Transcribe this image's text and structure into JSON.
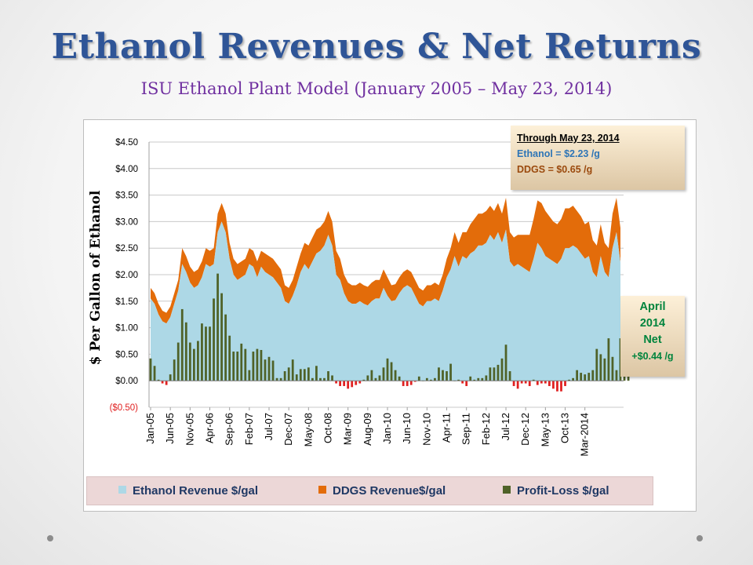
{
  "slide": {
    "title": "Ethanol Revenues & Net Returns",
    "subtitle": "ISU Ethanol Plant Model (January 2005 – May 23, 2014)"
  },
  "info_box": {
    "title": "Through May 23, 2014",
    "ethanol_line": "Ethanol  = $2.23 /g",
    "ddgs_line": "DDGS     = $0.65 /g"
  },
  "net_box": {
    "line1": "April",
    "line2": "2014",
    "line3": "Net",
    "line4": "+$0.44 /g"
  },
  "legend": {
    "ethanol": "Ethanol Revenue $/gal",
    "ddgs": "DDGS Revenue$/gal",
    "profit": "Profit-Loss $/gal"
  },
  "colors": {
    "ethanol": "#add8e6",
    "ddgs": "#e36c0a",
    "profit": "#4f6228",
    "loss": "#e02020",
    "title": "#2f5597",
    "subtitle": "#7030a0"
  },
  "chart_data": {
    "type": "area",
    "ylabel": "$ Per Gallon of Ethanol",
    "xlabel": "",
    "ylim": [
      -0.5,
      4.5
    ],
    "ytick_labels": [
      "($0.50)",
      "$0.00",
      "$0.50",
      "$1.00",
      "$1.50",
      "$2.00",
      "$2.50",
      "$3.00",
      "$3.50",
      "$4.00",
      "$4.50"
    ],
    "xtick_labels": [
      "Jan-05",
      "Jun-05",
      "Nov-05",
      "Apr-06",
      "Sep-06",
      "Feb-07",
      "Jul-07",
      "Dec-07",
      "May-08",
      "Oct-08",
      "Mar-09",
      "Aug-09",
      "Jan-10",
      "Jun-10",
      "Nov-10",
      "Apr-11",
      "Sep-11",
      "Feb-12",
      "Jul-12",
      "Dec-12",
      "May-13",
      "Oct-13",
      "Mar-2014"
    ],
    "grid": "horizontal",
    "legend_position": "bottom",
    "first_month": "2005-01",
    "series": [
      {
        "name": "Ethanol Revenue $/gal",
        "kind": "stacked-area",
        "values": [
          1.55,
          1.45,
          1.25,
          1.12,
          1.08,
          1.2,
          1.45,
          1.7,
          2.2,
          2.05,
          1.85,
          1.75,
          1.8,
          1.95,
          2.2,
          2.15,
          2.2,
          2.8,
          3.0,
          2.8,
          2.3,
          2.0,
          1.9,
          1.95,
          2.0,
          2.2,
          2.15,
          1.95,
          2.15,
          2.05,
          2.0,
          1.95,
          1.85,
          1.75,
          1.5,
          1.45,
          1.6,
          1.8,
          2.05,
          2.2,
          2.1,
          2.25,
          2.4,
          2.45,
          2.55,
          2.75,
          2.55,
          2.0,
          1.9,
          1.65,
          1.5,
          1.45,
          1.45,
          1.5,
          1.45,
          1.42,
          1.5,
          1.55,
          1.55,
          1.75,
          1.6,
          1.5,
          1.52,
          1.65,
          1.75,
          1.8,
          1.75,
          1.6,
          1.45,
          1.4,
          1.5,
          1.5,
          1.55,
          1.5,
          1.7,
          1.95,
          2.1,
          2.35,
          2.15,
          2.35,
          2.3,
          2.4,
          2.45,
          2.55,
          2.55,
          2.6,
          2.75,
          2.65,
          2.8,
          2.6,
          2.85,
          2.25,
          2.15,
          2.2,
          2.15,
          2.1,
          2.05,
          2.3,
          2.6,
          2.5,
          2.35,
          2.3,
          2.25,
          2.2,
          2.3,
          2.5,
          2.5,
          2.55,
          2.5,
          2.4,
          2.3,
          2.35,
          2.05,
          1.95,
          2.35,
          2.05,
          1.95,
          2.5,
          2.8,
          2.23
        ]
      },
      {
        "name": "DDGS Revenue$/gal",
        "kind": "stacked-area",
        "values": [
          0.2,
          0.2,
          0.2,
          0.2,
          0.2,
          0.2,
          0.2,
          0.2,
          0.3,
          0.3,
          0.3,
          0.3,
          0.3,
          0.3,
          0.3,
          0.3,
          0.3,
          0.35,
          0.35,
          0.35,
          0.3,
          0.3,
          0.3,
          0.3,
          0.3,
          0.3,
          0.3,
          0.3,
          0.3,
          0.35,
          0.35,
          0.35,
          0.35,
          0.35,
          0.3,
          0.3,
          0.3,
          0.35,
          0.35,
          0.4,
          0.45,
          0.45,
          0.45,
          0.45,
          0.45,
          0.45,
          0.45,
          0.45,
          0.4,
          0.35,
          0.35,
          0.35,
          0.35,
          0.35,
          0.35,
          0.35,
          0.35,
          0.35,
          0.35,
          0.35,
          0.35,
          0.3,
          0.3,
          0.3,
          0.3,
          0.3,
          0.3,
          0.3,
          0.3,
          0.3,
          0.3,
          0.3,
          0.3,
          0.3,
          0.3,
          0.35,
          0.4,
          0.45,
          0.45,
          0.45,
          0.5,
          0.55,
          0.6,
          0.6,
          0.6,
          0.6,
          0.55,
          0.55,
          0.55,
          0.55,
          0.6,
          0.55,
          0.55,
          0.55,
          0.6,
          0.65,
          0.7,
          0.75,
          0.8,
          0.85,
          0.85,
          0.8,
          0.75,
          0.75,
          0.75,
          0.75,
          0.75,
          0.75,
          0.7,
          0.7,
          0.65,
          0.65,
          0.6,
          0.6,
          0.6,
          0.55,
          0.55,
          0.65,
          0.65,
          0.65
        ]
      },
      {
        "name": "Profit-Loss $/gal",
        "kind": "bar",
        "values": [
          0.42,
          0.28,
          0.02,
          -0.05,
          -0.08,
          0.12,
          0.4,
          0.72,
          1.35,
          1.1,
          0.72,
          0.6,
          0.75,
          1.08,
          1.02,
          1.02,
          1.55,
          2.02,
          1.65,
          1.25,
          0.85,
          0.55,
          0.55,
          0.7,
          0.6,
          0.2,
          0.55,
          0.6,
          0.58,
          0.4,
          0.45,
          0.38,
          0.05,
          0.05,
          0.18,
          0.25,
          0.4,
          0.12,
          0.22,
          0.22,
          0.25,
          0.05,
          0.28,
          0.05,
          0.05,
          0.18,
          0.1,
          -0.05,
          -0.1,
          -0.1,
          -0.15,
          -0.12,
          -0.08,
          -0.05,
          0.02,
          0.1,
          0.2,
          0.05,
          0.1,
          0.25,
          0.42,
          0.35,
          0.2,
          0.08,
          -0.1,
          -0.1,
          -0.08,
          -0.02,
          0.08,
          0.0,
          0.05,
          0.02,
          0.05,
          0.25,
          0.2,
          0.18,
          0.32,
          0.0,
          0.02,
          -0.05,
          -0.1,
          0.08,
          0.02,
          0.05,
          0.05,
          0.1,
          0.25,
          0.25,
          0.3,
          0.42,
          0.68,
          0.18,
          -0.1,
          -0.15,
          -0.05,
          -0.05,
          -0.1,
          0.02,
          -0.08,
          -0.05,
          -0.05,
          -0.1,
          -0.15,
          -0.2,
          -0.2,
          -0.1,
          0.02,
          0.05,
          0.2,
          0.15,
          0.12,
          0.15,
          0.2,
          0.6,
          0.5,
          0.42,
          0.8,
          0.45,
          0.2,
          0.8,
          1.05,
          0.44
        ]
      }
    ]
  }
}
